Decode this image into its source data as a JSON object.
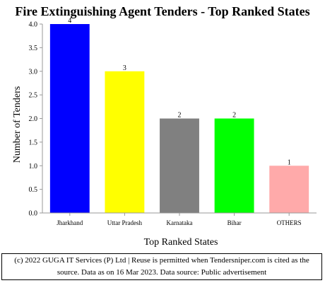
{
  "chart_data": {
    "type": "bar",
    "title": "Fire Extinguishing Agent Tenders - Top Ranked States",
    "xlabel": "Top Ranked States",
    "ylabel": "Number of Tenders",
    "categories": [
      "Jharkhand",
      "Uttar Pradesh",
      "Karnataka",
      "Bihar",
      "OTHERS"
    ],
    "values": [
      4,
      3,
      2,
      2,
      1
    ],
    "data_labels": [
      "4",
      "3",
      "2",
      "2",
      "1"
    ],
    "colors": [
      "#0000ff",
      "#ffff00",
      "#808080",
      "#00ff00",
      "#ffaaaa"
    ],
    "ylim": [
      0,
      4.0
    ],
    "yticks": [
      "0.0",
      "0.5",
      "1.0",
      "1.5",
      "2.0",
      "2.5",
      "3.0",
      "3.5",
      "4.0"
    ],
    "grid": false,
    "legend": "none"
  },
  "footer": {
    "line1": "(c) 2022 GUGA IT Services (P) Ltd | Reuse is permitted when Tendersniper.com is cited as the",
    "line2": "source. Data as on 16 Mar 2023. Data source: Public advertisement"
  }
}
